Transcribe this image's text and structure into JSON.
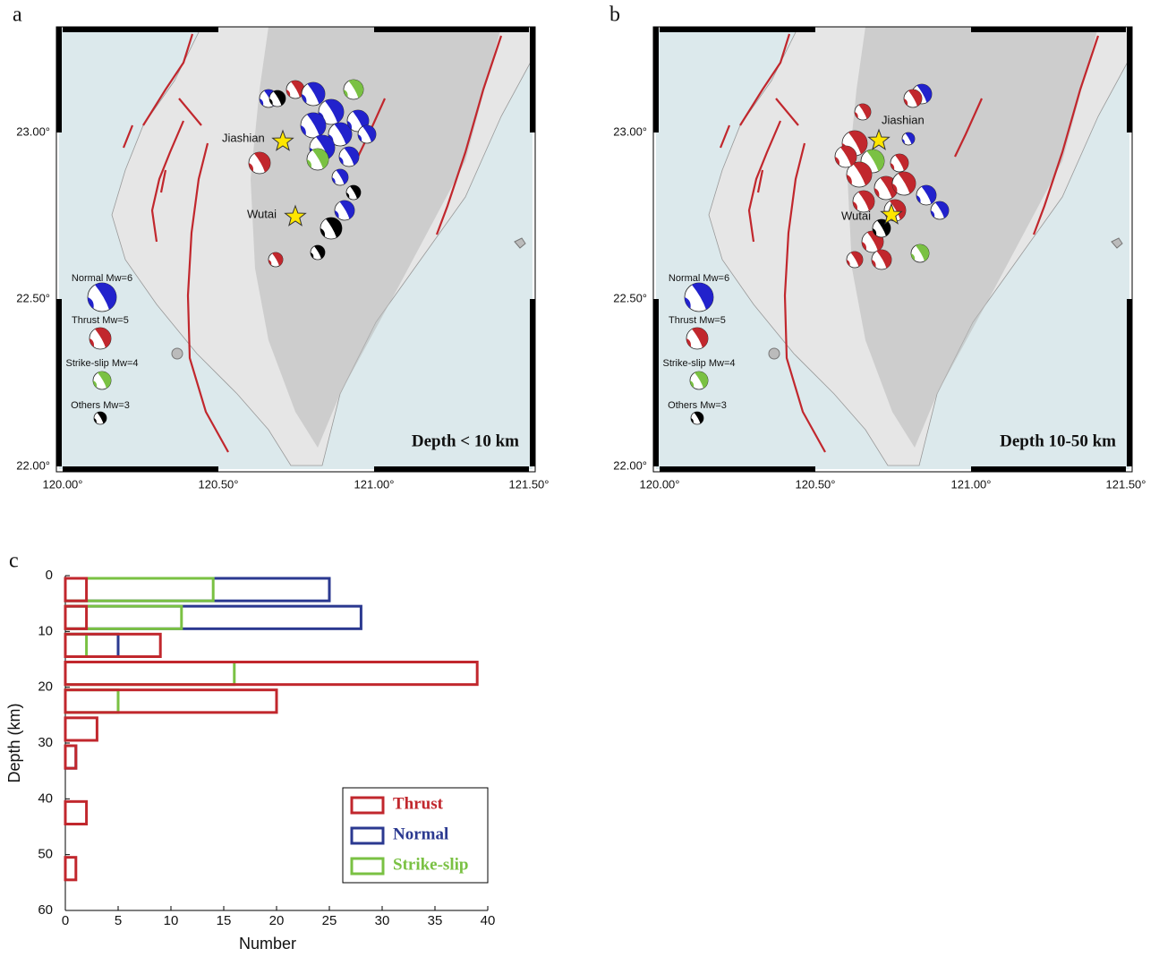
{
  "maps": [
    {
      "label": "a",
      "depth": "Depth < 10 km",
      "xticks": [
        "120.00°",
        "120.50°",
        "121.00°",
        "121.50°"
      ],
      "yticks": [
        "22.00°",
        "22.50°",
        "23.00°"
      ],
      "places": [
        "Jiashian",
        "Wutai"
      ],
      "legend": [
        "Normal Mw=6",
        "Thrust Mw=5",
        "Strike-slip Mw=4",
        "Others Mw=3"
      ]
    },
    {
      "label": "b",
      "depth": "Depth 10-50 km",
      "xticks": [
        "120.00°",
        "120.50°",
        "121.00°",
        "121.50°"
      ],
      "yticks": [
        "22.00°",
        "22.50°",
        "23.00°"
      ],
      "places": [
        "Jiashian",
        "Wutai"
      ],
      "legend": [
        "Normal Mw=6",
        "Thrust Mw=5",
        "Strike-slip Mw=4",
        "Others Mw=3"
      ]
    }
  ],
  "chart_data": {
    "type": "histogram",
    "panel": "c",
    "orientation": "horizontal",
    "xlabel": "Number",
    "ylabel": "Depth (km)",
    "bins": [
      0,
      5,
      10,
      15,
      20,
      25,
      30,
      35,
      40,
      45,
      50,
      55,
      60
    ],
    "series": [
      {
        "name": "Thrust",
        "color": "#c1272d",
        "values": [
          2,
          2,
          9,
          39,
          20,
          3,
          1,
          0,
          2,
          0,
          1,
          0
        ]
      },
      {
        "name": "Normal",
        "color": "#2b3990",
        "values": [
          25,
          28,
          5,
          0,
          0,
          0,
          1,
          0,
          0,
          0,
          0,
          0
        ]
      },
      {
        "name": "Strike-slip",
        "color": "#7ac143",
        "values": [
          14,
          11,
          2,
          16,
          5,
          0,
          0,
          0,
          0,
          0,
          0,
          0
        ]
      }
    ],
    "xlim": [
      0,
      40
    ],
    "xticks": [
      0,
      5,
      10,
      15,
      20,
      25,
      30,
      35,
      40
    ],
    "ylim": [
      0,
      60
    ],
    "yticks": [
      0,
      10,
      20,
      30,
      40,
      50,
      60
    ],
    "y_inverted": true,
    "legend": "lower right"
  }
}
